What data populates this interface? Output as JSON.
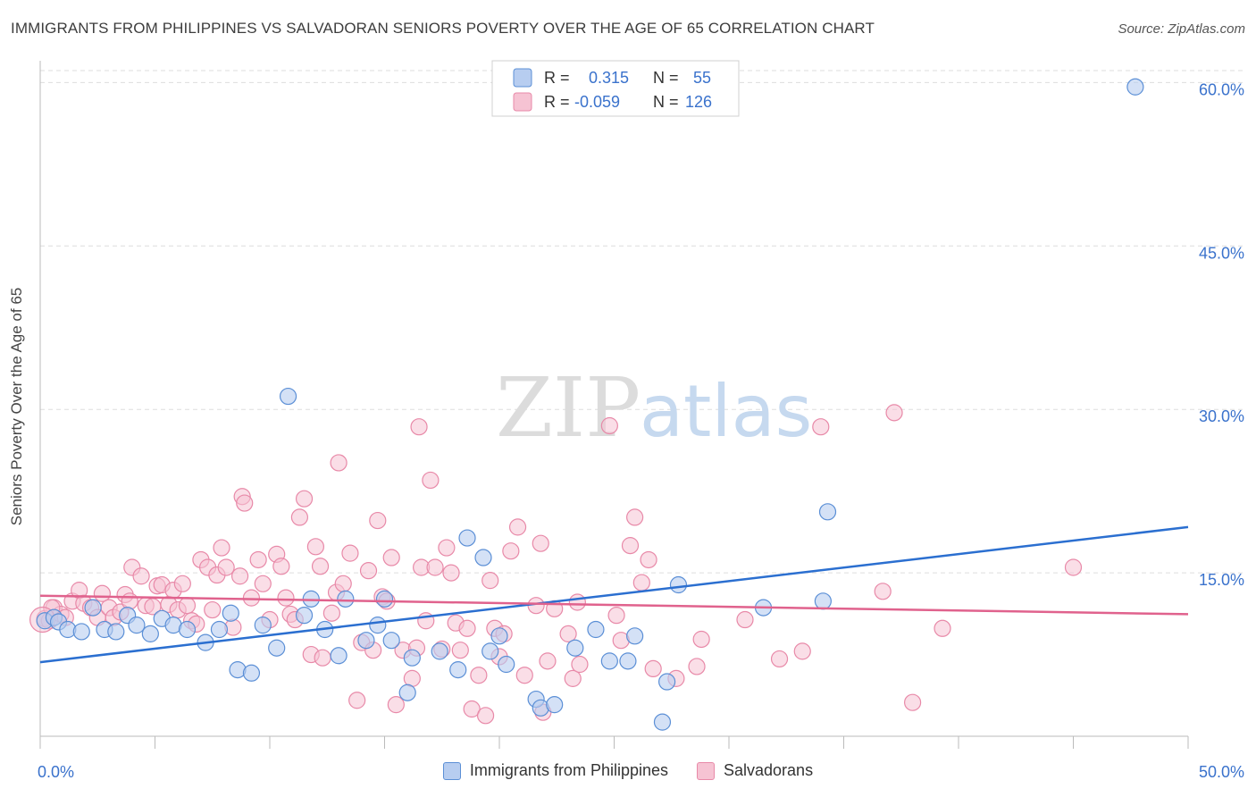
{
  "header": {
    "title": "IMMIGRANTS FROM PHILIPPINES VS SALVADORAN SENIORS POVERTY OVER THE AGE OF 65 CORRELATION CHART",
    "source": "Source: ZipAtlas.com"
  },
  "watermark": {
    "part1": "ZIP",
    "part2": "atlas"
  },
  "colors": {
    "blue": "#5b8fd6",
    "blue_fill": "#b7cdf0",
    "blue_line": "#2b6fd0",
    "pink": "#e889a8",
    "pink_fill": "#f6c3d3",
    "pink_line": "#e0628d",
    "tick_label": "#3a72cc",
    "grid": "#dddddd"
  },
  "legend_top": {
    "rows": [
      {
        "r_label": "R =",
        "r_value": "0.315",
        "n_label": "N =",
        "n_value": "55"
      },
      {
        "r_label": "R =",
        "r_value": "-0.059",
        "n_label": "N =",
        "n_value": "126"
      }
    ]
  },
  "legend_bottom": {
    "series1": "Immigrants from Philippines",
    "series2": "Salvadorans"
  },
  "chart_data": {
    "type": "scatter",
    "title": "IMMIGRANTS FROM PHILIPPINES VS SALVADORAN SENIORS POVERTY OVER THE AGE OF 65 CORRELATION CHART",
    "xlabel": "",
    "ylabel": "Seniors Poverty Over the Age of 65",
    "xlim": [
      0,
      50
    ],
    "ylim": [
      0,
      62
    ],
    "x_tick_labels": [
      "0.0%",
      "50.0%"
    ],
    "y_ticks": [
      15,
      30,
      45,
      60
    ],
    "y_tick_labels": [
      "15.0%",
      "30.0%",
      "45.0%",
      "60.0%"
    ],
    "grid": true,
    "legend_placement": "top-center",
    "series": [
      {
        "name": "Immigrants from Philippines",
        "r": 0.315,
        "n": 55,
        "trend": {
          "x": [
            0,
            50
          ],
          "y": [
            6.8,
            19.2
          ]
        },
        "points": [
          [
            0.2,
            10.6
          ],
          [
            0.6,
            10.9
          ],
          [
            0.8,
            10.5
          ],
          [
            1.2,
            9.8
          ],
          [
            1.8,
            9.6
          ],
          [
            2.3,
            11.8
          ],
          [
            2.8,
            9.8
          ],
          [
            3.3,
            9.6
          ],
          [
            3.8,
            11.1
          ],
          [
            4.2,
            10.2
          ],
          [
            4.8,
            9.4
          ],
          [
            5.3,
            10.8
          ],
          [
            5.8,
            10.2
          ],
          [
            6.4,
            9.8
          ],
          [
            7.2,
            8.6
          ],
          [
            7.8,
            9.8
          ],
          [
            8.3,
            11.3
          ],
          [
            8.6,
            6.1
          ],
          [
            9.2,
            5.8
          ],
          [
            9.7,
            10.2
          ],
          [
            10.3,
            8.1
          ],
          [
            10.8,
            31.2
          ],
          [
            11.5,
            11.1
          ],
          [
            11.8,
            12.6
          ],
          [
            12.4,
            9.8
          ],
          [
            13.0,
            7.4
          ],
          [
            13.3,
            12.6
          ],
          [
            14.2,
            8.8
          ],
          [
            14.7,
            10.2
          ],
          [
            15.0,
            12.6
          ],
          [
            15.3,
            8.8
          ],
          [
            16.0,
            4.0
          ],
          [
            16.2,
            7.2
          ],
          [
            17.4,
            7.8
          ],
          [
            18.2,
            6.1
          ],
          [
            18.6,
            18.2
          ],
          [
            19.3,
            16.4
          ],
          [
            19.6,
            7.8
          ],
          [
            20.0,
            9.2
          ],
          [
            20.3,
            6.6
          ],
          [
            21.6,
            3.4
          ],
          [
            21.8,
            2.6
          ],
          [
            22.4,
            2.9
          ],
          [
            23.3,
            8.1
          ],
          [
            24.2,
            9.8
          ],
          [
            24.8,
            6.9
          ],
          [
            25.6,
            6.9
          ],
          [
            25.9,
            9.2
          ],
          [
            27.1,
            1.3
          ],
          [
            27.3,
            5.0
          ],
          [
            27.8,
            13.9
          ],
          [
            31.5,
            11.8
          ],
          [
            34.1,
            12.4
          ],
          [
            34.3,
            20.6
          ],
          [
            47.7,
            59.6
          ]
        ]
      },
      {
        "name": "Salvadorans",
        "r": -0.059,
        "n": 126,
        "trend": {
          "x": [
            0,
            50
          ],
          "y": [
            12.9,
            11.2
          ]
        },
        "points": [
          [
            0.2,
            10.8
          ],
          [
            0.4,
            10.6
          ],
          [
            0.6,
            11.8
          ],
          [
            0.9,
            11.2
          ],
          [
            1.1,
            10.9
          ],
          [
            1.4,
            12.4
          ],
          [
            1.7,
            13.4
          ],
          [
            1.9,
            12.2
          ],
          [
            2.2,
            11.8
          ],
          [
            2.5,
            10.9
          ],
          [
            2.7,
            13.1
          ],
          [
            3.0,
            11.8
          ],
          [
            3.2,
            10.9
          ],
          [
            3.5,
            11.4
          ],
          [
            3.7,
            13.0
          ],
          [
            3.9,
            12.4
          ],
          [
            4.0,
            15.5
          ],
          [
            4.4,
            14.7
          ],
          [
            4.6,
            12.0
          ],
          [
            4.9,
            11.9
          ],
          [
            5.1,
            13.8
          ],
          [
            5.3,
            13.9
          ],
          [
            5.6,
            12.1
          ],
          [
            5.8,
            13.4
          ],
          [
            6.0,
            11.6
          ],
          [
            6.2,
            14.0
          ],
          [
            6.4,
            12.0
          ],
          [
            6.6,
            10.6
          ],
          [
            6.8,
            10.3
          ],
          [
            7.0,
            16.2
          ],
          [
            7.3,
            15.5
          ],
          [
            7.5,
            11.6
          ],
          [
            7.7,
            14.8
          ],
          [
            7.9,
            17.3
          ],
          [
            8.1,
            15.5
          ],
          [
            8.4,
            10.0
          ],
          [
            8.7,
            14.7
          ],
          [
            8.8,
            22.0
          ],
          [
            8.9,
            21.4
          ],
          [
            9.2,
            12.7
          ],
          [
            9.5,
            16.2
          ],
          [
            9.7,
            14.0
          ],
          [
            10.0,
            10.7
          ],
          [
            10.3,
            16.7
          ],
          [
            10.5,
            15.6
          ],
          [
            10.7,
            12.7
          ],
          [
            10.9,
            11.2
          ],
          [
            11.1,
            10.7
          ],
          [
            11.3,
            20.1
          ],
          [
            11.5,
            21.8
          ],
          [
            11.8,
            7.5
          ],
          [
            12.0,
            17.4
          ],
          [
            12.2,
            15.6
          ],
          [
            12.3,
            7.2
          ],
          [
            12.7,
            11.3
          ],
          [
            12.9,
            13.2
          ],
          [
            13.0,
            25.1
          ],
          [
            13.2,
            14.0
          ],
          [
            13.5,
            16.8
          ],
          [
            13.8,
            3.3
          ],
          [
            14.0,
            8.6
          ],
          [
            14.3,
            15.2
          ],
          [
            14.5,
            7.9
          ],
          [
            14.7,
            19.8
          ],
          [
            14.9,
            12.8
          ],
          [
            15.1,
            12.4
          ],
          [
            15.3,
            16.4
          ],
          [
            15.5,
            2.9
          ],
          [
            15.8,
            7.9
          ],
          [
            16.2,
            5.3
          ],
          [
            16.4,
            8.1
          ],
          [
            16.5,
            28.4
          ],
          [
            16.6,
            15.5
          ],
          [
            16.8,
            10.6
          ],
          [
            17.0,
            23.5
          ],
          [
            17.2,
            15.5
          ],
          [
            17.5,
            8.0
          ],
          [
            17.7,
            17.3
          ],
          [
            17.9,
            15.0
          ],
          [
            18.1,
            10.4
          ],
          [
            18.3,
            7.9
          ],
          [
            18.6,
            9.9
          ],
          [
            18.8,
            2.5
          ],
          [
            19.1,
            5.6
          ],
          [
            19.4,
            1.9
          ],
          [
            19.6,
            14.3
          ],
          [
            19.8,
            9.9
          ],
          [
            20.0,
            7.3
          ],
          [
            20.2,
            9.4
          ],
          [
            20.5,
            17.0
          ],
          [
            20.8,
            19.2
          ],
          [
            21.1,
            5.6
          ],
          [
            21.6,
            12.0
          ],
          [
            21.8,
            17.7
          ],
          [
            21.9,
            2.2
          ],
          [
            22.1,
            6.9
          ],
          [
            22.4,
            11.7
          ],
          [
            23.0,
            9.4
          ],
          [
            23.2,
            5.3
          ],
          [
            23.4,
            12.3
          ],
          [
            23.5,
            6.6
          ],
          [
            24.8,
            28.5
          ],
          [
            25.1,
            11.1
          ],
          [
            25.3,
            8.8
          ],
          [
            25.7,
            17.5
          ],
          [
            25.9,
            20.1
          ],
          [
            26.2,
            14.1
          ],
          [
            26.5,
            16.2
          ],
          [
            26.7,
            6.2
          ],
          [
            27.7,
            5.3
          ],
          [
            28.6,
            6.4
          ],
          [
            28.8,
            8.9
          ],
          [
            30.7,
            10.7
          ],
          [
            32.2,
            7.1
          ],
          [
            33.2,
            7.8
          ],
          [
            34.0,
            28.4
          ],
          [
            36.7,
            13.3
          ],
          [
            37.2,
            29.7
          ],
          [
            38.0,
            3.1
          ],
          [
            39.3,
            9.9
          ],
          [
            45.0,
            15.5
          ],
          [
            0.5,
            11.8
          ]
        ]
      }
    ]
  }
}
